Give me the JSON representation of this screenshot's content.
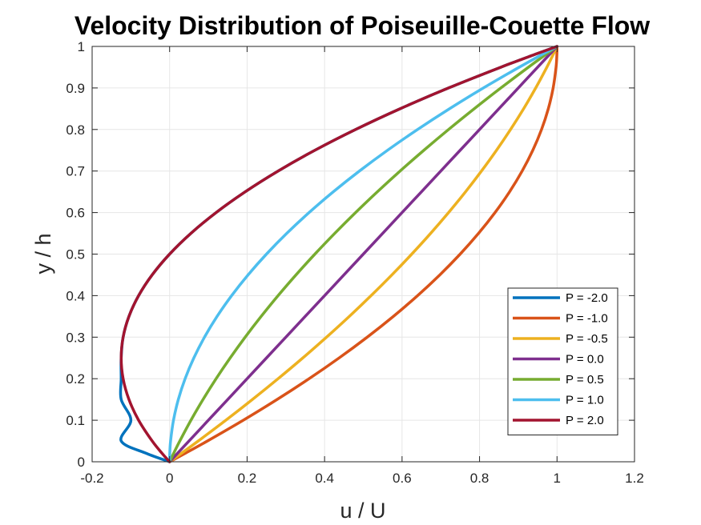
{
  "chart_data": {
    "type": "line",
    "title": "Velocity Distribution of Poiseuille-Couette Flow",
    "xlabel": "u / U",
    "ylabel": "y / h",
    "xlim": [
      -0.2,
      1.2
    ],
    "ylim": [
      0,
      1
    ],
    "x_ticks": [
      "-0.2",
      "0",
      "0.2",
      "0.4",
      "0.6",
      "0.8",
      "1",
      "1.2"
    ],
    "y_ticks": [
      "0",
      "0.1",
      "0.2",
      "0.3",
      "0.4",
      "0.5",
      "0.6",
      "0.7",
      "0.8",
      "0.9",
      "1"
    ],
    "grid": true,
    "legend_position": "bottom-right",
    "y_samples": [
      0,
      0.02,
      0.05,
      0.1,
      0.15,
      0.2,
      0.25,
      0.3,
      0.35,
      0.4,
      0.45,
      0.5,
      0.55,
      0.6,
      0.65,
      0.7,
      0.75,
      0.8,
      0.85,
      0.9,
      0.95,
      0.98,
      1
    ],
    "series": [
      {
        "name": "P = -2.0",
        "color": "#0072BD",
        "x": [
          0,
          -0.0592,
          -0.125,
          -0.1,
          -0.125,
          -0.125,
          -0.125,
          -0.12,
          -0.105,
          -0.08,
          -0.045,
          0,
          0.055,
          0.12,
          0.195,
          0.28,
          0.375,
          0.48,
          0.595,
          0.72,
          0.855,
          0.9408,
          1
        ]
      },
      {
        "name": "P = -1.0",
        "color": "#D95319",
        "x": [
          0,
          0.0396,
          0.0975,
          0.19,
          0.2775,
          0.36,
          0.4375,
          0.51,
          0.5775,
          0.64,
          0.6975,
          0.75,
          0.7975,
          0.84,
          0.8775,
          0.91,
          0.9375,
          0.96,
          0.9775,
          0.99,
          0.9975,
          0.9996,
          1
        ]
      },
      {
        "name": "P = -0.5",
        "color": "#EDB120",
        "x": [
          0,
          0.0298,
          0.0738,
          0.145,
          0.2138,
          0.28,
          0.3438,
          0.405,
          0.4638,
          0.52,
          0.5738,
          0.625,
          0.6738,
          0.72,
          0.7638,
          0.805,
          0.8438,
          0.88,
          0.9138,
          0.945,
          0.9738,
          0.9898,
          1
        ]
      },
      {
        "name": "P = 0.0",
        "color": "#7E2F8E",
        "x": [
          0,
          0.02,
          0.05,
          0.1,
          0.15,
          0.2,
          0.25,
          0.3,
          0.35,
          0.4,
          0.45,
          0.5,
          0.55,
          0.6,
          0.65,
          0.7,
          0.75,
          0.8,
          0.85,
          0.9,
          0.95,
          0.98,
          1
        ]
      },
      {
        "name": "P = 0.5",
        "color": "#77AC30",
        "x": [
          0,
          0.0102,
          0.0263,
          0.055,
          0.0863,
          0.12,
          0.1563,
          0.195,
          0.2363,
          0.28,
          0.3263,
          0.375,
          0.4263,
          0.48,
          0.5363,
          0.595,
          0.6563,
          0.72,
          0.7863,
          0.855,
          0.9263,
          0.9702,
          1
        ]
      },
      {
        "name": "P = 1.0",
        "color": "#4DBEEE",
        "x": [
          0,
          0.0004,
          0.0025,
          0.01,
          0.0225,
          0.04,
          0.0625,
          0.09,
          0.1225,
          0.16,
          0.2025,
          0.25,
          0.3025,
          0.36,
          0.4225,
          0.49,
          0.5625,
          0.64,
          0.7225,
          0.81,
          0.9025,
          0.9604,
          1
        ]
      },
      {
        "name": "P = 2.0",
        "color": "#A2142F",
        "x": [
          0,
          -0.0192,
          -0.045,
          -0.08,
          -0.105,
          -0.12,
          -0.125,
          -0.12,
          -0.105,
          -0.08,
          -0.045,
          0,
          0.055,
          0.12,
          0.195,
          0.28,
          0.375,
          0.48,
          0.595,
          0.72,
          0.855,
          0.9408,
          1
        ]
      }
    ]
  }
}
